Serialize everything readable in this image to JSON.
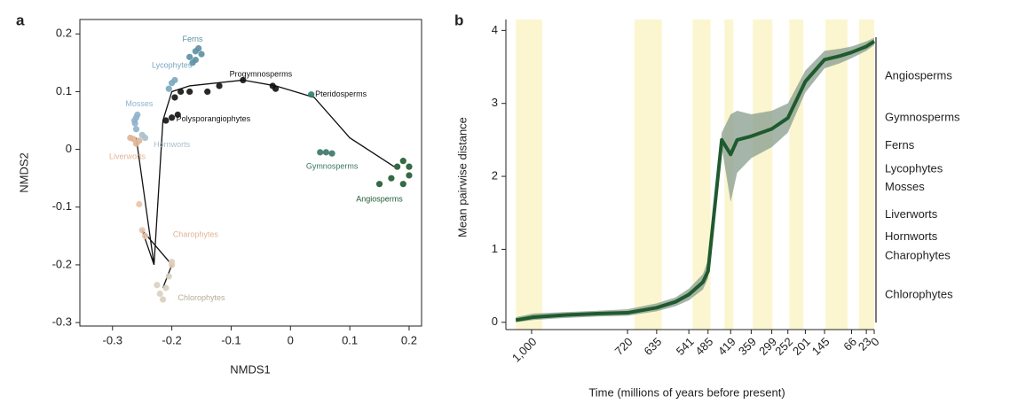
{
  "chart_data": [
    {
      "type": "scatter",
      "panel_label": "a",
      "x_label": "NMDS1",
      "y_label": "NMDS2",
      "xlim": [
        -0.355,
        0.221
      ],
      "ylim": [
        -0.306,
        0.225
      ],
      "xticks": [
        -0.3,
        -0.2,
        -0.1,
        0,
        0.1,
        0.2
      ],
      "yticks": [
        -0.3,
        -0.2,
        -0.1,
        0,
        0.1,
        0.2
      ],
      "lines": [
        {
          "color": "#111111",
          "x": [
            -0.23,
            -0.215,
            -0.2,
            -0.17,
            -0.08,
            -0.025,
            0.04,
            0.1,
            0.175,
            null,
            -0.26,
            -0.23,
            -0.25,
            -0.2,
            -0.215
          ],
          "y": [
            -0.2,
            0.05,
            0.1,
            0.11,
            0.12,
            0.11,
            0.09,
            0.02,
            -0.03,
            null,
            0.02,
            -0.2,
            -0.14,
            -0.2,
            -0.24
          ]
        }
      ],
      "series": [
        {
          "name": "Ferns",
          "color": "#5b8fa3",
          "x": [
            -0.16,
            -0.155,
            -0.17,
            -0.165,
            -0.16,
            -0.15
          ],
          "values": [
            0.17,
            0.175,
            0.16,
            0.15,
            0.155,
            0.165
          ]
        },
        {
          "name": "Lycophytes",
          "color": "#7aa6c0",
          "x": [
            -0.2,
            -0.205,
            -0.195
          ],
          "values": [
            0.115,
            0.105,
            0.12
          ]
        },
        {
          "name": "Mosses",
          "color": "#8fb3cc",
          "x": [
            -0.26,
            -0.262,
            -0.258,
            -0.26,
            -0.263
          ],
          "values": [
            0.055,
            0.045,
            0.06,
            0.035,
            0.05
          ]
        },
        {
          "name": "Hornworts",
          "color": "#a9bfcc",
          "x": [
            -0.245,
            -0.25
          ],
          "values": [
            0.02,
            0.025
          ]
        },
        {
          "name": "Liverworts",
          "color": "#e0b596",
          "x": [
            -0.27,
            -0.255,
            -0.26,
            -0.265
          ],
          "values": [
            0.02,
            0.015,
            0.01,
            0.018
          ]
        },
        {
          "name": "Charophytes",
          "color": "#e8c4ac",
          "x": [
            -0.255,
            -0.25,
            -0.245,
            -0.2
          ],
          "values": [
            -0.095,
            -0.14,
            -0.15,
            -0.2
          ]
        },
        {
          "name": "Chlorophytes",
          "color": "#d9cfc0",
          "x": [
            -0.21,
            -0.22,
            -0.215,
            -0.205,
            -0.2,
            -0.225
          ],
          "values": [
            -0.24,
            -0.25,
            -0.26,
            -0.22,
            -0.195,
            -0.235
          ]
        },
        {
          "name": "Polysporangiophytes",
          "color": "#111111",
          "x": [
            -0.21,
            -0.2,
            -0.19,
            -0.195,
            -0.185,
            -0.17,
            -0.14,
            -0.12,
            -0.08,
            -0.03,
            -0.025
          ],
          "values": [
            0.05,
            0.055,
            0.06,
            0.09,
            0.1,
            0.1,
            0.1,
            0.11,
            0.12,
            0.11,
            0.105
          ]
        },
        {
          "name": "Pteridosperms",
          "color": "#2e7d6a",
          "x": [
            0.035
          ],
          "values": [
            0.095
          ]
        },
        {
          "name": "Gymnosperms",
          "color": "#3a7565",
          "x": [
            0.05,
            0.06,
            0.07
          ],
          "values": [
            -0.005,
            -0.005,
            -0.007
          ]
        },
        {
          "name": "Angiosperms",
          "color": "#1e5a30",
          "x": [
            0.18,
            0.19,
            0.2,
            0.17,
            0.19,
            0.15,
            0.2
          ],
          "values": [
            -0.03,
            -0.02,
            -0.03,
            -0.05,
            -0.06,
            -0.06,
            -0.045
          ]
        }
      ],
      "annotations": [
        {
          "text": "Ferns",
          "x": -0.165,
          "y": 0.19,
          "color": "#5b8fa3"
        },
        {
          "text": "Lycophytes",
          "x": -0.2,
          "y": 0.145,
          "color": "#7aa6c0"
        },
        {
          "text": "Mosses",
          "x": -0.255,
          "y": 0.078,
          "color": "#8fb3cc"
        },
        {
          "text": "Hornworts",
          "x": -0.2,
          "y": 0.008,
          "color": "#a9bfcc"
        },
        {
          "text": "Liverworts",
          "x": -0.275,
          "y": -0.013,
          "color": "#e0b596"
        },
        {
          "text": "Charophytes",
          "x": -0.16,
          "y": -0.148,
          "color": "#e0b596"
        },
        {
          "text": "Chlorophytes",
          "x": -0.15,
          "y": -0.258,
          "color": "#b8ab98"
        },
        {
          "text": "Progymnosperms",
          "x": -0.05,
          "y": 0.13,
          "color": "#111111"
        },
        {
          "text": "Pteridosperms",
          "x": 0.085,
          "y": 0.095,
          "color": "#111111"
        },
        {
          "text": "Polysporangiophytes",
          "x": -0.13,
          "y": 0.052,
          "color": "#111111"
        },
        {
          "text": "Gymnosperms",
          "x": 0.07,
          "y": -0.03,
          "color": "#3a7565"
        },
        {
          "text": "Angiosperms",
          "x": 0.15,
          "y": -0.087,
          "color": "#1e5a30"
        }
      ]
    },
    {
      "type": "line",
      "panel_label": "b",
      "x_label": "Time (millions of years before present)",
      "y_label": "Mean pairwise distance",
      "xlim": [
        1075,
        0
      ],
      "ylim": [
        -0.1,
        4.15
      ],
      "xticks": [
        {
          "value": 1000,
          "label": "1,000"
        },
        720,
        635,
        541,
        485,
        419,
        359,
        299,
        252,
        201,
        145,
        66,
        23,
        0
      ],
      "yticks": [
        0,
        1,
        2,
        3,
        4
      ],
      "shaded_spans": [
        [
          1046,
          969
        ],
        [
          700,
          620
        ],
        [
          530,
          478
        ],
        [
          437,
          411
        ],
        [
          354,
          297
        ],
        [
          248,
          207
        ],
        [
          142,
          78
        ],
        [
          44,
          0
        ]
      ],
      "span_color": "#fbf6cf",
      "x": [
        1046,
        995,
        900,
        800,
        720,
        635,
        580,
        541,
        500,
        485,
        445,
        419,
        400,
        359,
        299,
        252,
        201,
        145,
        100,
        66,
        23,
        0
      ],
      "series": [
        {
          "color": "#1f5a2e",
          "band_color": "#8fa393",
          "values": [
            0.03,
            0.07,
            0.1,
            0.12,
            0.13,
            0.2,
            0.28,
            0.38,
            0.55,
            0.7,
            2.5,
            2.3,
            2.5,
            2.55,
            2.65,
            2.8,
            3.3,
            3.6,
            3.65,
            3.7,
            3.78,
            3.85
          ],
          "lower": [
            0.0,
            0.03,
            0.06,
            0.08,
            0.09,
            0.15,
            0.22,
            0.3,
            0.45,
            0.6,
            2.4,
            1.65,
            2.05,
            2.25,
            2.4,
            2.6,
            3.15,
            3.48,
            3.55,
            3.62,
            3.72,
            3.8
          ],
          "upper": [
            0.07,
            0.12,
            0.14,
            0.16,
            0.18,
            0.26,
            0.34,
            0.46,
            0.66,
            0.85,
            2.6,
            2.85,
            2.9,
            2.85,
            2.9,
            3.0,
            3.45,
            3.72,
            3.75,
            3.78,
            3.85,
            3.9
          ]
        }
      ],
      "clade_labels": [
        {
          "text": "Angiosperms",
          "y": 3.37
        },
        {
          "text": "Gymnosperms",
          "y": 2.8
        },
        {
          "text": "Ferns",
          "y": 2.42
        },
        {
          "text": "Lycophytes",
          "y": 2.1
        },
        {
          "text": "Mosses",
          "y": 1.85
        },
        {
          "text": "Liverworts",
          "y": 1.47
        },
        {
          "text": "Hornworts",
          "y": 1.17
        },
        {
          "text": "Charophytes",
          "y": 0.91
        },
        {
          "text": "Chlorophytes",
          "y": 0.37
        }
      ]
    }
  ]
}
